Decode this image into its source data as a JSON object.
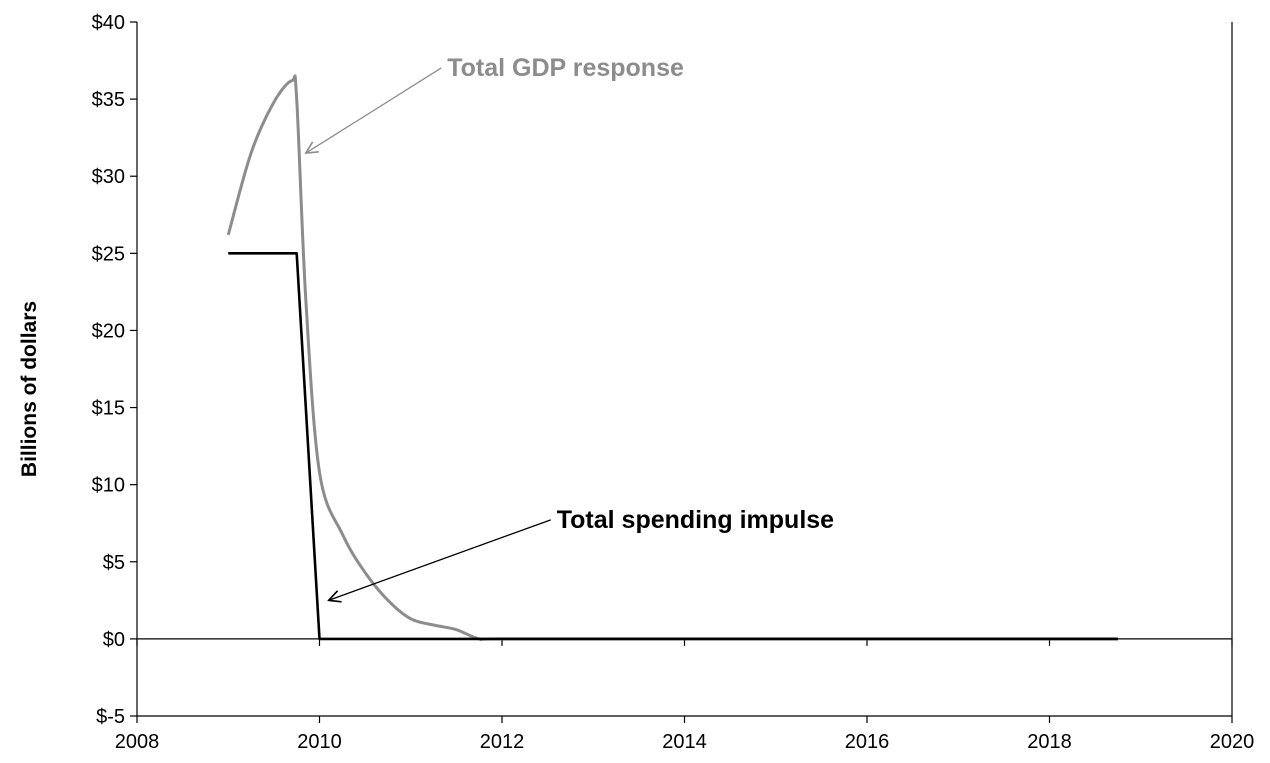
{
  "chart_data": {
    "type": "line",
    "ylabel": "Billions of dollars",
    "xlabel": "",
    "title": "",
    "xlim": [
      2008,
      2020
    ],
    "ylim": [
      -5,
      40
    ],
    "x_ticks": [
      2008,
      2010,
      2012,
      2014,
      2016,
      2018,
      2020
    ],
    "y_ticks": [
      -5,
      0,
      5,
      10,
      15,
      20,
      25,
      30,
      35,
      40
    ],
    "x_tick_labels": [
      "2008",
      "2010",
      "2012",
      "2014",
      "2016",
      "2018",
      "2020"
    ],
    "y_tick_labels": [
      "$-5",
      "$0",
      "$5",
      "$10",
      "$15",
      "$20",
      "$25",
      "$30",
      "$35",
      "$40"
    ],
    "grid": false,
    "legend": "none",
    "series": [
      {
        "name": "Total GDP response",
        "color": "#8c8c8c",
        "x": [
          2009.0,
          2009.25,
          2009.5,
          2009.7,
          2009.75,
          2009.85,
          2010.0,
          2010.25,
          2010.5,
          2010.75,
          2011.0,
          2011.25,
          2011.5,
          2011.75,
          2012.0,
          2014.0,
          2016.0,
          2018.0,
          2018.75
        ],
        "y": [
          26.2,
          31.5,
          34.8,
          36.2,
          35.0,
          22.0,
          10.8,
          6.8,
          4.3,
          2.5,
          1.3,
          0.9,
          0.6,
          0.0,
          0.0,
          0.0,
          0.0,
          0.0,
          0.0
        ]
      },
      {
        "name": "Total spending impulse",
        "color": "#000000",
        "x": [
          2009.0,
          2009.25,
          2009.5,
          2009.75,
          2010.0,
          2010.25,
          2012.0,
          2014.0,
          2016.0,
          2018.0,
          2018.75
        ],
        "y": [
          25,
          25,
          25,
          25,
          0,
          0,
          0,
          0,
          0,
          0,
          0
        ]
      }
    ],
    "annotations": [
      {
        "text": "Total GDP response",
        "series_index": 0,
        "point_x": 2009.85,
        "point_y": 31.5,
        "label_x": 2011.4,
        "label_y": 36.5
      },
      {
        "text": "Total spending impulse",
        "series_index": 1,
        "point_x": 2010.1,
        "point_y": 2.5,
        "label_x": 2012.6,
        "label_y": 7.2
      }
    ]
  }
}
